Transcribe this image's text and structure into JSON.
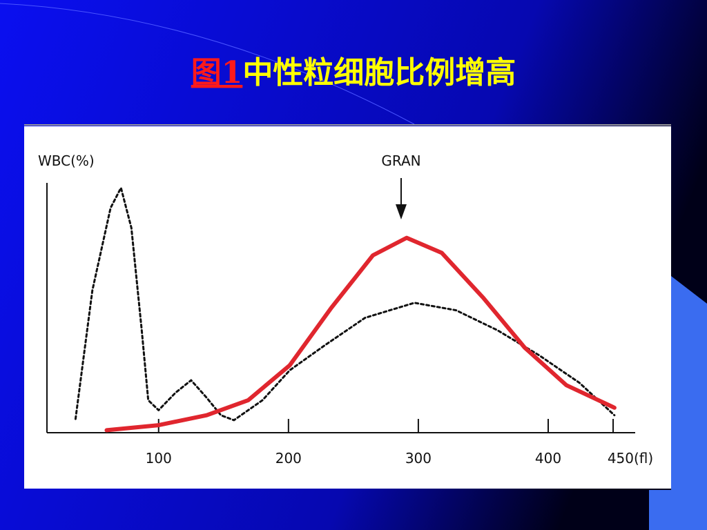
{
  "title_parts": [
    "图1",
    "中性粒细胞比例增高"
  ],
  "chart_data": {
    "type": "line",
    "ylabel": "WBC(%)",
    "annotation": {
      "text": "GRAN",
      "x": 291
    },
    "xlim": [
      14,
      467
    ],
    "ylim": [
      0,
      100
    ],
    "xticks": [
      100,
      200,
      300,
      400,
      {
        "value": 450,
        "label": "450(fl)"
      }
    ],
    "series": [
      {
        "color": "#111111",
        "dashed": true,
        "x": [
          36,
          49,
          63,
          71,
          79,
          87,
          92,
          100,
          113,
          125,
          137,
          148,
          158,
          180,
          201,
          228,
          259,
          297,
          329,
          361,
          393,
          424,
          451
        ],
        "values": [
          5.5,
          57,
          90,
          98,
          82,
          41,
          13,
          9,
          16,
          21,
          14,
          7,
          5,
          13,
          25,
          35,
          46,
          52,
          49,
          41,
          31,
          20,
          7
        ]
      },
      {
        "color": "#e0262e",
        "dashed": false,
        "x": [
          60,
          100,
          137,
          169,
          201,
          233,
          265,
          291,
          318,
          350,
          382,
          414,
          451
        ],
        "values": [
          1,
          3,
          7,
          13,
          27,
          50,
          71,
          78,
          72,
          54,
          34,
          19,
          10
        ]
      }
    ]
  }
}
